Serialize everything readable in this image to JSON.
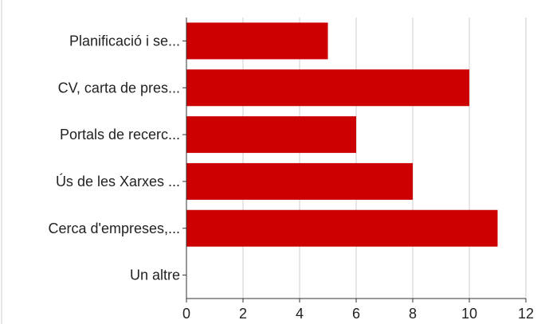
{
  "chart_data": {
    "type": "bar",
    "orientation": "horizontal",
    "categories": [
      "Planificació i se...",
      "CV, carta de pres...",
      "Portals de recerc...",
      "Ús de les Xarxes ...",
      "Cerca d'empreses,...",
      "Un altre"
    ],
    "values": [
      5,
      10,
      6,
      8,
      11,
      0
    ],
    "xlim": [
      0,
      12
    ],
    "xticks": [
      "0",
      "2",
      "4",
      "6",
      "8",
      "10",
      "12"
    ],
    "bar_color": "#cc0000",
    "grid": true,
    "title": "",
    "xlabel": "",
    "ylabel": ""
  }
}
